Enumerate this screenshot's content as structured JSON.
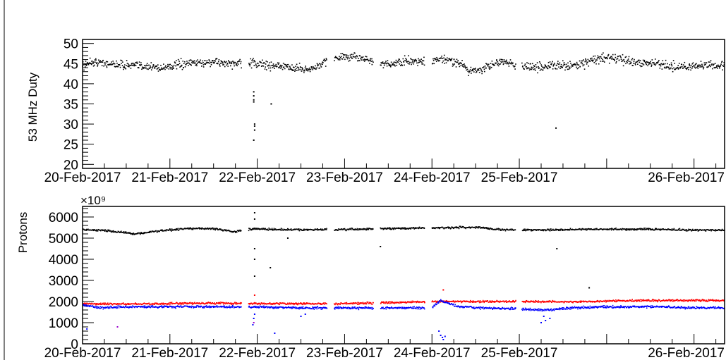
{
  "chart_data": [
    {
      "type": "scatter",
      "ylabel": "53 MHz Duty",
      "ylim": [
        19,
        51
      ],
      "yticks": [
        20,
        25,
        30,
        35,
        40,
        45,
        50
      ],
      "x_tick_labels": [
        "20-Feb-2017",
        "21-Feb-2017",
        "22-Feb-2017",
        "23-Feb-2017",
        "24-Feb-2017",
        "25-Feb-2017",
        "26-Feb-2017"
      ],
      "xlim_days": [
        0,
        7.35
      ],
      "series": [
        {
          "color": "#000000",
          "baseline": [
            [
              0.05,
              45.5
            ],
            [
              0.3,
              45.0
            ],
            [
              0.6,
              44.5
            ],
            [
              0.9,
              44.0
            ],
            [
              1.2,
              45.0
            ],
            [
              1.5,
              45.5
            ],
            [
              1.7,
              45.0
            ],
            [
              2.0,
              45.0
            ],
            [
              2.3,
              44.2
            ],
            [
              2.6,
              43.5
            ],
            [
              2.9,
              46.5
            ],
            [
              3.2,
              46.5
            ],
            [
              3.4,
              44.5
            ],
            [
              3.7,
              45.5
            ],
            [
              3.9,
              45.5
            ],
            [
              4.1,
              46.0
            ],
            [
              4.3,
              45.5
            ],
            [
              4.45,
              43.0
            ],
            [
              4.6,
              44.0
            ],
            [
              4.8,
              45.5
            ],
            [
              5.0,
              44.5
            ],
            [
              5.2,
              44.0
            ],
            [
              5.4,
              44.5
            ],
            [
              5.6,
              44.5
            ],
            [
              5.8,
              45.5
            ],
            [
              6.0,
              46.5
            ],
            [
              6.3,
              45.5
            ],
            [
              6.6,
              45.0
            ],
            [
              6.8,
              44.0
            ],
            [
              7.0,
              44.5
            ],
            [
              7.35,
              44.5
            ]
          ],
          "gaps_days": [
            [
              1.82,
              1.9
            ],
            [
              2.8,
              2.88
            ],
            [
              3.33,
              3.41
            ],
            [
              3.92,
              4.0
            ],
            [
              4.96,
              5.03
            ]
          ],
          "outliers": [
            [
              1.96,
              38
            ],
            [
              1.96,
              37
            ],
            [
              1.96,
              36
            ],
            [
              1.96,
              35.5
            ],
            [
              1.97,
              30
            ],
            [
              1.97,
              29.5
            ],
            [
              1.97,
              28.5
            ],
            [
              1.96,
              26
            ],
            [
              2.16,
              35
            ],
            [
              5.42,
              29
            ]
          ]
        }
      ]
    },
    {
      "type": "scatter",
      "ylabel": "Protons",
      "y_multiplier": "×10⁹",
      "ylim": [
        0,
        6500
      ],
      "yticks": [
        0,
        1000,
        2000,
        3000,
        4000,
        5000,
        6000
      ],
      "x_tick_labels": [
        "20-Feb-2017",
        "21-Feb-2017",
        "22-Feb-2017",
        "23-Feb-2017",
        "24-Feb-2017",
        "25-Feb-2017",
        "26-Feb-2017"
      ],
      "xlim_days": [
        0,
        7.35
      ],
      "series": [
        {
          "color": "#000000",
          "baseline": [
            [
              0.0,
              5400
            ],
            [
              0.3,
              5350
            ],
            [
              0.6,
              5200
            ],
            [
              0.9,
              5350
            ],
            [
              1.2,
              5450
            ],
            [
              1.5,
              5450
            ],
            [
              1.75,
              5300
            ],
            [
              1.95,
              5450
            ],
            [
              2.2,
              5400
            ],
            [
              2.5,
              5400
            ],
            [
              3.0,
              5400
            ],
            [
              3.5,
              5450
            ],
            [
              4.0,
              5480
            ],
            [
              4.5,
              5520
            ],
            [
              4.8,
              5400
            ],
            [
              5.0,
              5380
            ],
            [
              5.5,
              5400
            ],
            [
              6.0,
              5420
            ],
            [
              6.5,
              5420
            ],
            [
              7.0,
              5380
            ],
            [
              7.35,
              5380
            ]
          ],
          "gaps_days": [
            [
              1.82,
              1.9
            ],
            [
              2.8,
              2.88
            ],
            [
              3.33,
              3.41
            ],
            [
              3.92,
              4.0
            ],
            [
              4.96,
              5.03
            ]
          ],
          "outliers": [
            [
              1.97,
              6200
            ],
            [
              1.97,
              5900
            ],
            [
              1.97,
              4500
            ],
            [
              1.97,
              4000
            ],
            [
              1.97,
              3200
            ],
            [
              2.15,
              3600
            ],
            [
              3.41,
              4600
            ],
            [
              5.43,
              4500
            ],
            [
              5.8,
              2650
            ],
            [
              2.35,
              5000
            ]
          ]
        },
        {
          "color": "#ff0000",
          "baseline": [
            [
              0.0,
              1900
            ],
            [
              0.5,
              1880
            ],
            [
              1.0,
              1900
            ],
            [
              1.5,
              1920
            ],
            [
              2.0,
              1900
            ],
            [
              2.5,
              1900
            ],
            [
              3.0,
              1900
            ],
            [
              3.5,
              1950
            ],
            [
              4.0,
              2000
            ],
            [
              4.5,
              2000
            ],
            [
              5.0,
              2000
            ],
            [
              5.5,
              1980
            ],
            [
              6.0,
              2020
            ],
            [
              6.5,
              2050
            ],
            [
              7.0,
              2050
            ],
            [
              7.35,
              2050
            ]
          ],
          "gaps_days": [
            [
              1.82,
              1.9
            ],
            [
              2.8,
              2.88
            ],
            [
              3.33,
              3.41
            ],
            [
              3.92,
              4.0
            ],
            [
              4.96,
              5.03
            ]
          ],
          "outliers": [
            [
              4.13,
              2550
            ],
            [
              1.97,
              2300
            ]
          ]
        },
        {
          "color": "#0000ff",
          "baseline": [
            [
              0.0,
              1850
            ],
            [
              0.2,
              1700
            ],
            [
              0.5,
              1750
            ],
            [
              1.0,
              1750
            ],
            [
              1.5,
              1750
            ],
            [
              2.0,
              1750
            ],
            [
              2.5,
              1700
            ],
            [
              3.0,
              1700
            ],
            [
              3.5,
              1700
            ],
            [
              4.0,
              1700
            ],
            [
              4.1,
              2050
            ],
            [
              4.3,
              1750
            ],
            [
              4.6,
              1700
            ],
            [
              5.0,
              1650
            ],
            [
              5.3,
              1600
            ],
            [
              5.6,
              1700
            ],
            [
              6.0,
              1750
            ],
            [
              6.5,
              1750
            ],
            [
              7.0,
              1700
            ],
            [
              7.35,
              1700
            ]
          ],
          "gaps_days": [
            [
              1.82,
              1.9
            ],
            [
              2.8,
              2.88
            ],
            [
              3.33,
              3.41
            ],
            [
              3.92,
              4.0
            ],
            [
              4.96,
              5.03
            ]
          ],
          "outliers": [
            [
              1.95,
              900
            ],
            [
              1.96,
              1200
            ],
            [
              1.97,
              1400
            ],
            [
              2.5,
              1300
            ],
            [
              2.55,
              1400
            ],
            [
              4.08,
              600
            ],
            [
              4.1,
              400
            ],
            [
              4.12,
              300
            ],
            [
              4.13,
              200
            ],
            [
              4.15,
              350
            ],
            [
              5.25,
              1000
            ],
            [
              5.3,
              1100
            ],
            [
              5.35,
              1200
            ],
            [
              5.28,
              1300
            ],
            [
              0.05,
              700
            ],
            [
              2.2,
              500
            ]
          ]
        },
        {
          "color": "#9900cc",
          "outliers": [
            [
              0.4,
              800
            ],
            [
              1.96,
              1000
            ]
          ]
        }
      ]
    }
  ]
}
